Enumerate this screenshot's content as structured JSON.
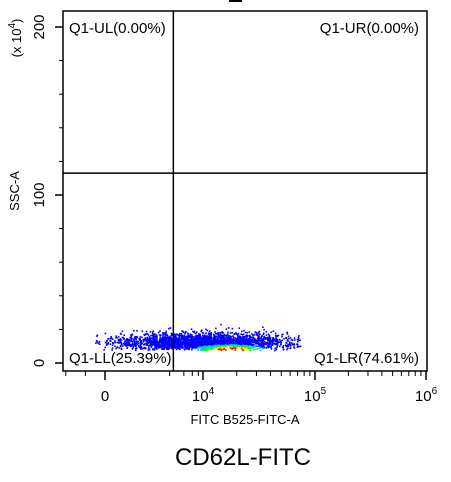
{
  "chart_data": {
    "type": "scatter",
    "title": "CD62L-FITC",
    "xlabel": "FITC B525-FITC-A",
    "ylabel": "SSC-A",
    "y_multiplier": "(x 10^4)",
    "x_scale": "biexponential",
    "x_ticks": [
      {
        "value": 0,
        "base": "0",
        "exp": ""
      },
      {
        "value": 10000,
        "base": "10",
        "exp": "4"
      },
      {
        "value": 100000,
        "base": "10",
        "exp": "5"
      },
      {
        "value": 1000000,
        "base": "10",
        "exp": "6"
      }
    ],
    "y_ticks": [
      0,
      100,
      200
    ],
    "ylim": [
      0,
      210
    ],
    "gate": {
      "x": 2400,
      "y": 113
    },
    "quadrants": [
      {
        "name": "Q1-UL",
        "label": "Q1-UL(0.00%)",
        "percent": 0.0
      },
      {
        "name": "Q1-UR",
        "label": "Q1-UR(0.00%)",
        "percent": 0.0
      },
      {
        "name": "Q1-LL",
        "label": "Q1-LL(25.39%)",
        "percent": 25.39
      },
      {
        "name": "Q1-LR",
        "label": "Q1-LR(74.61%)",
        "percent": 74.61
      }
    ],
    "density_colors": [
      "#0000ff",
      "#00c8ff",
      "#00ff00",
      "#ffff00",
      "#ff0000"
    ]
  }
}
